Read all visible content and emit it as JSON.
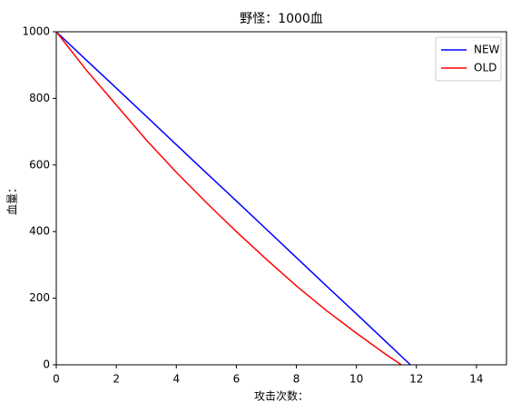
{
  "chart_data": {
    "type": "line",
    "title": "野怪：1000血",
    "xlabel": "攻击次数：",
    "ylabel": "血量：",
    "xlim": [
      0,
      15
    ],
    "ylim": [
      0,
      1000
    ],
    "xticks": [
      0,
      2,
      4,
      6,
      8,
      10,
      12,
      14
    ],
    "yticks": [
      0,
      200,
      400,
      600,
      800,
      1000
    ],
    "grid": false,
    "legend": "upper right",
    "series": [
      {
        "name": "NEW",
        "color": "#0000ff",
        "x": [
          0,
          1,
          2,
          3,
          4,
          5,
          6,
          7,
          8,
          9,
          10,
          11,
          11.8
        ],
        "values": [
          1000,
          915,
          831,
          746,
          661,
          576,
          492,
          407,
          322,
          237,
          153,
          68,
          0
        ]
      },
      {
        "name": "OLD",
        "color": "#ff0000",
        "x": [
          0,
          1,
          2,
          3,
          4,
          5,
          6,
          7,
          8,
          9,
          10,
          11,
          11.5
        ],
        "values": [
          1000,
          885,
          780,
          675,
          578,
          487,
          400,
          317,
          237,
          163,
          95,
          30,
          0
        ]
      }
    ]
  }
}
